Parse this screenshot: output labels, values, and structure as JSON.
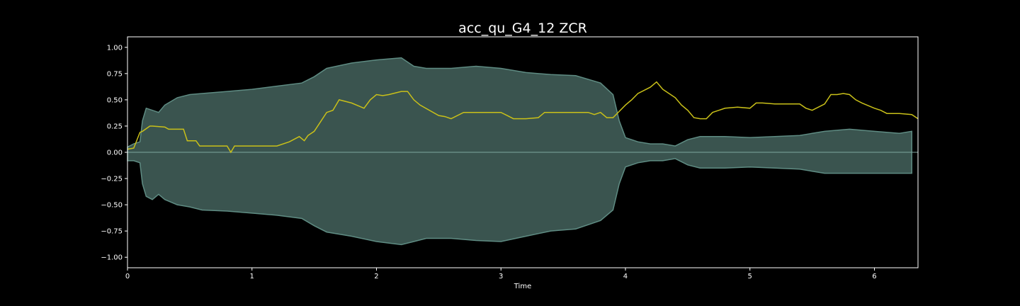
{
  "chart_data": {
    "type": "line",
    "title": "acc_qu_G4_12 ZCR",
    "xlabel": "Time",
    "ylabel": "",
    "xlim": [
      0,
      6.35
    ],
    "ylim": [
      -1.1,
      1.1
    ],
    "x_ticks": [
      0,
      1,
      2,
      3,
      4,
      5,
      6
    ],
    "x_tick_labels": [
      "0",
      "1",
      "2",
      "3",
      "4",
      "5",
      "6"
    ],
    "y_ticks": [
      1.0,
      0.75,
      0.5,
      0.25,
      0.0,
      -0.25,
      -0.5,
      -0.75,
      -1.0
    ],
    "y_tick_labels": [
      "1.00",
      "0.75",
      "0.50",
      "0.25",
      "0.00",
      "−0.25",
      "−0.50",
      "−0.75",
      "−1.00"
    ],
    "grid": false,
    "colors": {
      "background": "#000000",
      "waveform_fill": "#3a544f",
      "waveform_edge": "#5f8c83",
      "zcr_line": "#c9c019",
      "axes": "#ffffff"
    },
    "series": [
      {
        "kind": "waveform-envelope",
        "x": [
          0.0,
          0.05,
          0.1,
          0.12,
          0.15,
          0.2,
          0.25,
          0.3,
          0.4,
          0.5,
          0.6,
          0.8,
          1.0,
          1.2,
          1.4,
          1.5,
          1.6,
          1.8,
          2.0,
          2.2,
          2.3,
          2.4,
          2.6,
          2.8,
          3.0,
          3.2,
          3.4,
          3.6,
          3.8,
          3.9,
          3.95,
          4.0,
          4.1,
          4.2,
          4.3,
          4.4,
          4.5,
          4.6,
          4.8,
          5.0,
          5.2,
          5.4,
          5.5,
          5.6,
          5.8,
          6.0,
          6.2,
          6.3
        ],
        "upper": [
          0.05,
          0.08,
          0.1,
          0.3,
          0.42,
          0.4,
          0.38,
          0.45,
          0.52,
          0.55,
          0.56,
          0.58,
          0.6,
          0.63,
          0.66,
          0.72,
          0.8,
          0.85,
          0.88,
          0.9,
          0.82,
          0.8,
          0.8,
          0.82,
          0.8,
          0.76,
          0.74,
          0.73,
          0.66,
          0.55,
          0.3,
          0.14,
          0.1,
          0.08,
          0.08,
          0.06,
          0.12,
          0.15,
          0.15,
          0.14,
          0.15,
          0.16,
          0.18,
          0.2,
          0.22,
          0.2,
          0.18,
          0.2
        ],
        "lower": [
          -0.08,
          -0.08,
          -0.1,
          -0.3,
          -0.42,
          -0.45,
          -0.4,
          -0.45,
          -0.5,
          -0.52,
          -0.55,
          -0.56,
          -0.58,
          -0.6,
          -0.63,
          -0.7,
          -0.76,
          -0.8,
          -0.85,
          -0.88,
          -0.85,
          -0.82,
          -0.82,
          -0.84,
          -0.85,
          -0.8,
          -0.75,
          -0.73,
          -0.65,
          -0.55,
          -0.3,
          -0.14,
          -0.1,
          -0.08,
          -0.08,
          -0.06,
          -0.12,
          -0.15,
          -0.15,
          -0.14,
          -0.15,
          -0.16,
          -0.18,
          -0.2,
          -0.2,
          -0.2,
          -0.2,
          -0.2
        ]
      },
      {
        "kind": "zcr",
        "x": [
          0.0,
          0.05,
          0.1,
          0.12,
          0.18,
          0.2,
          0.3,
          0.33,
          0.45,
          0.48,
          0.55,
          0.58,
          0.8,
          0.83,
          0.86,
          0.9,
          1.2,
          1.3,
          1.38,
          1.42,
          1.45,
          1.5,
          1.6,
          1.65,
          1.7,
          1.8,
          1.9,
          1.95,
          2.0,
          2.05,
          2.1,
          2.2,
          2.25,
          2.3,
          2.35,
          2.5,
          2.55,
          2.6,
          2.7,
          2.78,
          3.0,
          3.05,
          3.1,
          3.2,
          3.3,
          3.35,
          3.4,
          3.6,
          3.7,
          3.75,
          3.8,
          3.85,
          3.9,
          4.0,
          4.05,
          4.1,
          4.2,
          4.25,
          4.3,
          4.4,
          4.45,
          4.5,
          4.55,
          4.6,
          4.65,
          4.7,
          4.8,
          4.9,
          5.0,
          5.05,
          5.1,
          5.2,
          5.3,
          5.4,
          5.45,
          5.5,
          5.6,
          5.65,
          5.7,
          5.75,
          5.8,
          5.85,
          5.9,
          6.0,
          6.05,
          6.1,
          6.2,
          6.3,
          6.35
        ],
        "y": [
          0.03,
          0.04,
          0.19,
          0.2,
          0.25,
          0.25,
          0.24,
          0.22,
          0.22,
          0.11,
          0.11,
          0.06,
          0.06,
          0.0,
          0.06,
          0.06,
          0.06,
          0.1,
          0.15,
          0.11,
          0.16,
          0.2,
          0.38,
          0.4,
          0.5,
          0.47,
          0.42,
          0.5,
          0.55,
          0.54,
          0.55,
          0.58,
          0.58,
          0.5,
          0.45,
          0.35,
          0.34,
          0.32,
          0.38,
          0.38,
          0.38,
          0.35,
          0.32,
          0.32,
          0.33,
          0.38,
          0.38,
          0.38,
          0.38,
          0.36,
          0.38,
          0.33,
          0.33,
          0.45,
          0.5,
          0.56,
          0.62,
          0.67,
          0.6,
          0.52,
          0.45,
          0.4,
          0.33,
          0.32,
          0.32,
          0.38,
          0.42,
          0.43,
          0.42,
          0.47,
          0.47,
          0.46,
          0.46,
          0.46,
          0.42,
          0.4,
          0.46,
          0.55,
          0.55,
          0.56,
          0.55,
          0.5,
          0.47,
          0.42,
          0.4,
          0.37,
          0.37,
          0.36,
          0.32
        ]
      }
    ]
  }
}
